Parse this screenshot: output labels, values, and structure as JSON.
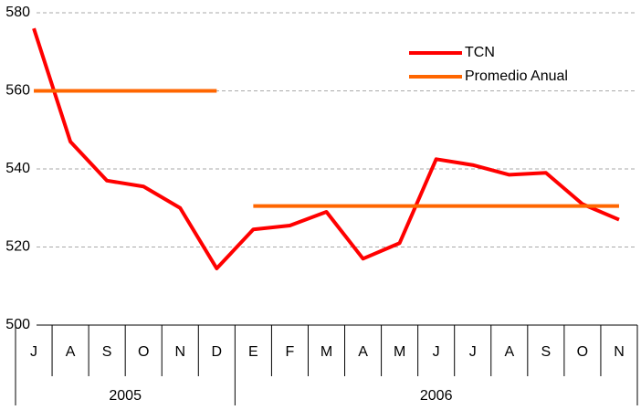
{
  "chart_data": {
    "type": "line",
    "groups": [
      {
        "label": "2005",
        "categories": [
          "J",
          "A",
          "S",
          "O",
          "N",
          "D"
        ]
      },
      {
        "label": "2006",
        "categories": [
          "E",
          "F",
          "M",
          "A",
          "M",
          "J",
          "J",
          "A",
          "S",
          "O",
          "N"
        ]
      }
    ],
    "series": [
      {
        "name": "TCN",
        "color": "#ff0000",
        "values": [
          576,
          547,
          537,
          535.5,
          530,
          514.5,
          524.5,
          525.5,
          529,
          517,
          521,
          542.5,
          541,
          538.5,
          539,
          531,
          527
        ]
      },
      {
        "name": "Promedio Anual",
        "color": "#ff6600",
        "values": [
          560,
          560,
          560,
          560,
          560,
          560,
          530.5,
          530.5,
          530.5,
          530.5,
          530.5,
          530.5,
          530.5,
          530.5,
          530.5,
          530.5,
          530.5
        ]
      }
    ],
    "ylim": [
      500,
      580
    ],
    "yticks": [
      500,
      520,
      540,
      560,
      580
    ],
    "grid": true,
    "legend": "top-right"
  }
}
